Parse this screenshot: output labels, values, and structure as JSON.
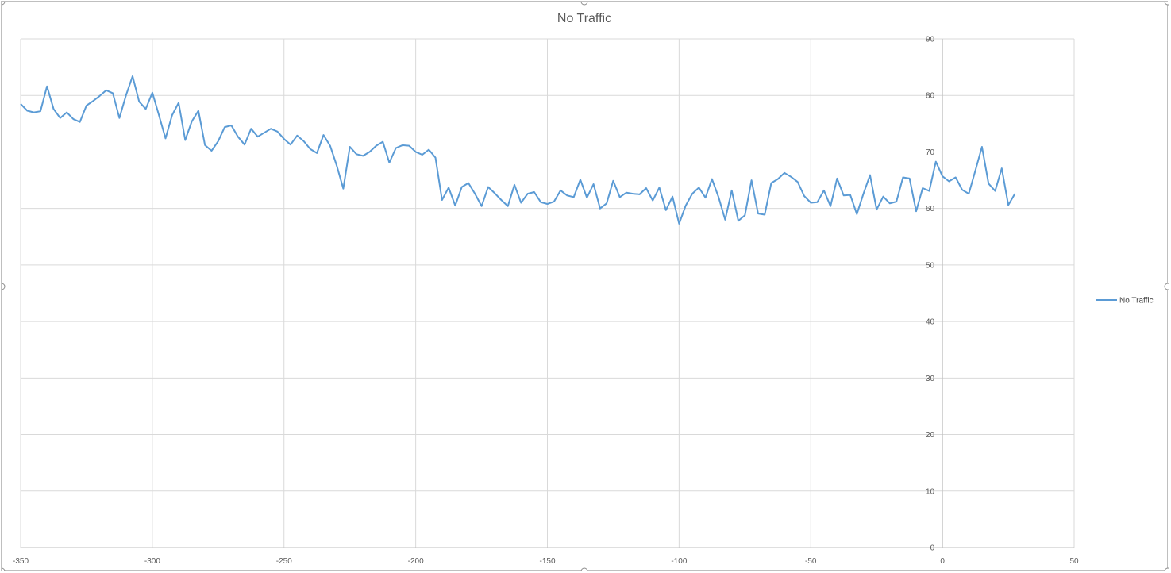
{
  "chart_data": {
    "type": "line",
    "title": "No Traffic",
    "xlabel": "",
    "ylabel": "",
    "xlim": [
      -350,
      50
    ],
    "ylim": [
      0,
      90
    ],
    "x_ticks": [
      "-350",
      "-300",
      "-250",
      "-200",
      "-150",
      "-100",
      "-50",
      "0",
      "50"
    ],
    "y_ticks": [
      "0",
      "10",
      "20",
      "30",
      "40",
      "50",
      "60",
      "70",
      "80",
      "90"
    ],
    "grid": true,
    "legend": "right",
    "series": [
      {
        "name": "No Traffic",
        "color": "#5b9bd5",
        "x": [
          -350,
          -347.5,
          -345,
          -342.5,
          -340,
          -337.5,
          -335,
          -332.5,
          -330,
          -327.5,
          -325,
          -322.5,
          -320,
          -317.5,
          -315,
          -312.5,
          -310,
          -307.5,
          -305,
          -302.5,
          -300,
          -297.5,
          -295,
          -292.5,
          -290,
          -287.5,
          -285,
          -282.5,
          -280,
          -277.5,
          -275,
          -272.5,
          -270,
          -267.5,
          -265,
          -262.5,
          -260,
          -257.5,
          -255,
          -252.5,
          -250,
          -247.5,
          -245,
          -242.5,
          -240,
          -237.5,
          -235,
          -232.5,
          -230,
          -227.5,
          -225,
          -222.5,
          -220,
          -217.5,
          -215,
          -212.5,
          -210,
          -207.5,
          -205,
          -202.5,
          -200,
          -197.5,
          -195,
          -192.5,
          -190,
          -187.5,
          -185,
          -182.5,
          -180,
          -177.5,
          -175,
          -172.5,
          -170,
          -167.5,
          -165,
          -162.5,
          -160,
          -157.5,
          -155,
          -152.5,
          -150,
          -147.5,
          -145,
          -142.5,
          -140,
          -137.5,
          -135,
          -132.5,
          -130,
          -127.5,
          -125,
          -122.5,
          -120,
          -117.5,
          -115,
          -112.5,
          -110,
          -107.5,
          -105,
          -102.5,
          -100,
          -97.5,
          -95,
          -92.5,
          -90,
          -87.5,
          -85,
          -82.5,
          -80,
          -77.5,
          -75,
          -72.5,
          -70,
          -67.5,
          -65,
          -62.5,
          -60,
          -57.5,
          -55,
          -52.5,
          -50,
          -47.5,
          -45,
          -42.5,
          -40,
          -37.5,
          -35,
          -32.5,
          -30,
          -27.5,
          -25,
          -22.5,
          -20,
          -17.5,
          -15,
          -12.5,
          -10,
          -7.5,
          -5,
          -2.5,
          0,
          2.5,
          5,
          7.5,
          10,
          12.5,
          15,
          17.5,
          20,
          22.5,
          25,
          27.5
        ],
        "values": [
          78.5,
          77.3,
          77.0,
          77.2,
          81.6,
          77.6,
          76.0,
          77.0,
          75.8,
          75.3,
          78.2,
          79.0,
          79.9,
          80.9,
          80.4,
          76.0,
          80.0,
          83.4,
          78.9,
          77.6,
          80.5,
          76.5,
          72.4,
          76.5,
          78.7,
          72.1,
          75.4,
          77.3,
          71.2,
          70.2,
          71.9,
          74.4,
          74.7,
          72.7,
          71.3,
          74.1,
          72.7,
          73.4,
          74.1,
          73.6,
          72.3,
          71.3,
          72.9,
          71.9,
          70.5,
          69.8,
          73.0,
          71.1,
          67.6,
          63.5,
          70.9,
          69.6,
          69.3,
          70.0,
          71.1,
          71.8,
          68.1,
          70.7,
          71.2,
          71.1,
          70.0,
          69.5,
          70.4,
          69.0,
          61.5,
          63.7,
          60.5,
          63.8,
          64.5,
          62.6,
          60.4,
          63.8,
          62.7,
          61.5,
          60.4,
          64.2,
          61.0,
          62.6,
          62.9,
          61.1,
          60.8,
          61.2,
          63.2,
          62.3,
          62.0,
          65.1,
          61.9,
          64.3,
          60.0,
          60.9,
          64.9,
          62.0,
          62.8,
          62.6,
          62.5,
          63.6,
          61.4,
          63.7,
          59.7,
          62.1,
          57.3,
          60.5,
          62.6,
          63.7,
          61.9,
          65.2,
          62.0,
          58.0,
          63.2,
          57.8,
          58.8,
          65.0,
          59.1,
          58.9,
          64.5,
          65.2,
          66.3,
          65.6,
          64.7,
          62.2,
          61.0,
          61.1,
          63.2,
          60.4,
          65.3,
          62.3,
          62.4,
          59.0,
          62.6,
          65.9,
          59.8,
          62.1,
          60.9,
          61.2,
          65.5,
          65.3,
          59.5,
          63.6,
          63.1,
          68.3,
          65.7,
          64.8,
          65.5,
          63.3,
          62.6,
          66.7,
          70.9,
          64.4,
          63.1,
          67.1,
          60.6,
          62.6
        ]
      }
    ]
  }
}
